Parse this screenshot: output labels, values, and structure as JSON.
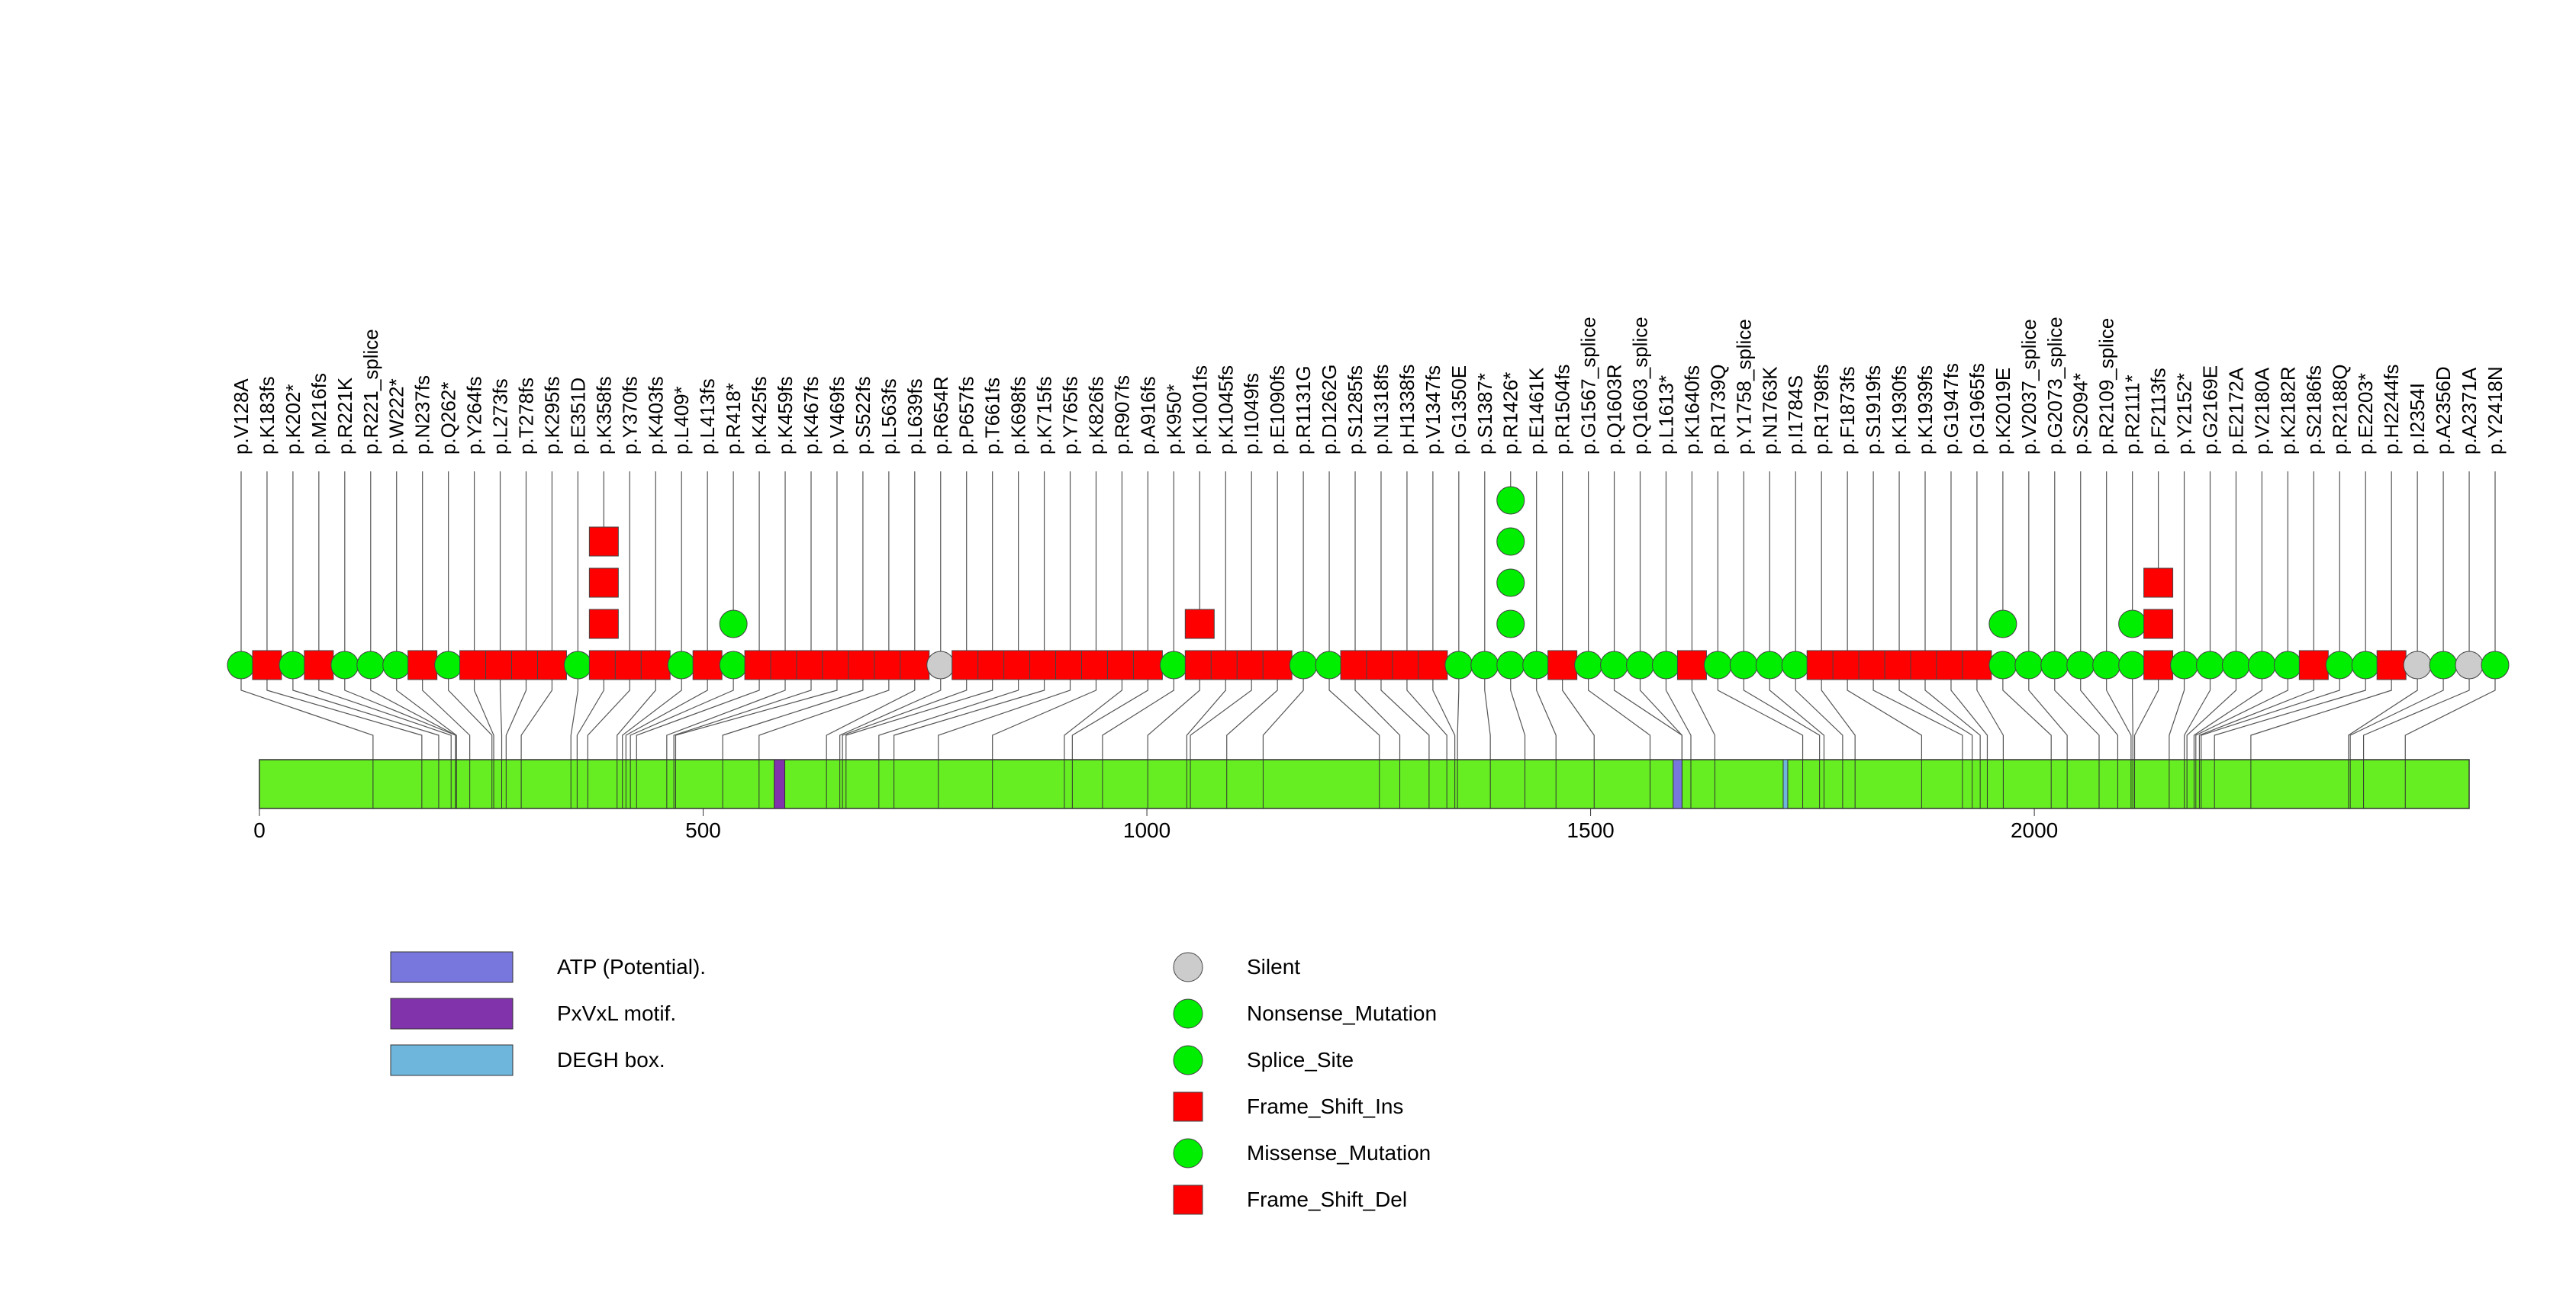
{
  "chart_data": {
    "type": "lollipop",
    "protein_length": 2490,
    "x_ticks": [
      0,
      500,
      1000,
      1500,
      2000
    ],
    "tick_labels": [
      "0",
      "500",
      "1000",
      "1500",
      "2000"
    ],
    "colors": {
      "protein": "#66ee22",
      "Silent": "#cccccc",
      "Nonsense_Mutation": "#00ee00",
      "Splice_Site": "#00ee00",
      "Frame_Shift_Ins": "#ff0000",
      "Missense_Mutation": "#00ee00",
      "Frame_Shift_Del": "#ff0000",
      "ATP": "#7777dd",
      "PxVxL": "#8033aa",
      "DEGH": "#6fb6dd"
    },
    "domains": [
      {
        "name": "PxVxL motif",
        "start": 580,
        "end": 592,
        "color": "#8033aa"
      },
      {
        "name": "ATP (Potential)",
        "start": 1593,
        "end": 1603,
        "color": "#7777dd"
      },
      {
        "name": "DEGH box",
        "start": 1717,
        "end": 1720,
        "color": "#6fb6dd"
      }
    ],
    "mutations": [
      {
        "label": "p.V128A",
        "pos": 128,
        "type": "Missense_Mutation",
        "count": 1
      },
      {
        "label": "p.K183fs",
        "pos": 183,
        "type": "Frame_Shift_Del",
        "count": 1
      },
      {
        "label": "p.K202*",
        "pos": 202,
        "type": "Nonsense_Mutation",
        "count": 1
      },
      {
        "label": "p.M216fs",
        "pos": 216,
        "type": "Frame_Shift_Del",
        "count": 1
      },
      {
        "label": "p.R221K",
        "pos": 221,
        "type": "Missense_Mutation",
        "count": 1
      },
      {
        "label": "p.R221_splice",
        "pos": 221,
        "type": "Splice_Site",
        "count": 1
      },
      {
        "label": "p.W222*",
        "pos": 222,
        "type": "Nonsense_Mutation",
        "count": 1
      },
      {
        "label": "p.N237fs",
        "pos": 237,
        "type": "Frame_Shift_Del",
        "count": 1
      },
      {
        "label": "p.Q262*",
        "pos": 262,
        "type": "Nonsense_Mutation",
        "count": 1
      },
      {
        "label": "p.Y264fs",
        "pos": 264,
        "type": "Frame_Shift_Del",
        "count": 1
      },
      {
        "label": "p.L273fs",
        "pos": 273,
        "type": "Frame_Shift_Del",
        "count": 1
      },
      {
        "label": "p.T278fs",
        "pos": 278,
        "type": "Frame_Shift_Del",
        "count": 1
      },
      {
        "label": "p.K295fs",
        "pos": 295,
        "type": "Frame_Shift_Del",
        "count": 1
      },
      {
        "label": "p.E351D",
        "pos": 351,
        "type": "Missense_Mutation",
        "count": 1
      },
      {
        "label": "p.K358fs",
        "pos": 358,
        "type": "Frame_Shift_Ins",
        "count": 4
      },
      {
        "label": "p.Y370fs",
        "pos": 370,
        "type": "Frame_Shift_Del",
        "count": 1
      },
      {
        "label": "p.K403fs",
        "pos": 403,
        "type": "Frame_Shift_Del",
        "count": 1
      },
      {
        "label": "p.L409*",
        "pos": 409,
        "type": "Nonsense_Mutation",
        "count": 1
      },
      {
        "label": "p.L413fs",
        "pos": 413,
        "type": "Frame_Shift_Del",
        "count": 1
      },
      {
        "label": "p.R418*",
        "pos": 418,
        "type": "Nonsense_Mutation",
        "count": 2
      },
      {
        "label": "p.K425fs",
        "pos": 425,
        "type": "Frame_Shift_Del",
        "count": 1
      },
      {
        "label": "p.K459fs",
        "pos": 459,
        "type": "Frame_Shift_Del",
        "count": 1
      },
      {
        "label": "p.K467fs",
        "pos": 467,
        "type": "Frame_Shift_Del",
        "count": 1
      },
      {
        "label": "p.V469fs",
        "pos": 469,
        "type": "Frame_Shift_Del",
        "count": 1
      },
      {
        "label": "p.S522fs",
        "pos": 522,
        "type": "Frame_Shift_Del",
        "count": 1
      },
      {
        "label": "p.L563fs",
        "pos": 563,
        "type": "Frame_Shift_Del",
        "count": 1
      },
      {
        "label": "p.L639fs",
        "pos": 639,
        "type": "Frame_Shift_Del",
        "count": 1
      },
      {
        "label": "p.R654R",
        "pos": 654,
        "type": "Silent",
        "count": 1
      },
      {
        "label": "p.P657fs",
        "pos": 657,
        "type": "Frame_Shift_Del",
        "count": 1
      },
      {
        "label": "p.T661fs",
        "pos": 661,
        "type": "Frame_Shift_Del",
        "count": 1
      },
      {
        "label": "p.K698fs",
        "pos": 698,
        "type": "Frame_Shift_Del",
        "count": 1
      },
      {
        "label": "p.K715fs",
        "pos": 715,
        "type": "Frame_Shift_Del",
        "count": 1
      },
      {
        "label": "p.Y765fs",
        "pos": 765,
        "type": "Frame_Shift_Del",
        "count": 1
      },
      {
        "label": "p.K826fs",
        "pos": 826,
        "type": "Frame_Shift_Del",
        "count": 1
      },
      {
        "label": "p.R907fs",
        "pos": 907,
        "type": "Frame_Shift_Del",
        "count": 1
      },
      {
        "label": "p.A916fs",
        "pos": 916,
        "type": "Frame_Shift_Del",
        "count": 1
      },
      {
        "label": "p.K950*",
        "pos": 950,
        "type": "Nonsense_Mutation",
        "count": 1
      },
      {
        "label": "p.K1001fs",
        "pos": 1001,
        "type": "Frame_Shift_Ins",
        "count": 2
      },
      {
        "label": "p.K1045fs",
        "pos": 1045,
        "type": "Frame_Shift_Del",
        "count": 1
      },
      {
        "label": "p.I1049fs",
        "pos": 1049,
        "type": "Frame_Shift_Del",
        "count": 1
      },
      {
        "label": "p.E1090fs",
        "pos": 1090,
        "type": "Frame_Shift_Del",
        "count": 1
      },
      {
        "label": "p.R1131G",
        "pos": 1131,
        "type": "Missense_Mutation",
        "count": 1
      },
      {
        "label": "p.D1262G",
        "pos": 1262,
        "type": "Missense_Mutation",
        "count": 1
      },
      {
        "label": "p.S1285fs",
        "pos": 1285,
        "type": "Frame_Shift_Del",
        "count": 1
      },
      {
        "label": "p.N1318fs",
        "pos": 1318,
        "type": "Frame_Shift_Del",
        "count": 1
      },
      {
        "label": "p.H1338fs",
        "pos": 1338,
        "type": "Frame_Shift_Del",
        "count": 1
      },
      {
        "label": "p.V1347fs",
        "pos": 1347,
        "type": "Frame_Shift_Del",
        "count": 1
      },
      {
        "label": "p.G1350E",
        "pos": 1350,
        "type": "Missense_Mutation",
        "count": 1
      },
      {
        "label": "p.S1387*",
        "pos": 1387,
        "type": "Nonsense_Mutation",
        "count": 1
      },
      {
        "label": "p.R1426*",
        "pos": 1426,
        "type": "Nonsense_Mutation",
        "count": 5
      },
      {
        "label": "p.E1461K",
        "pos": 1461,
        "type": "Missense_Mutation",
        "count": 1
      },
      {
        "label": "p.R1504fs",
        "pos": 1504,
        "type": "Frame_Shift_Del",
        "count": 1
      },
      {
        "label": "p.G1567_splice",
        "pos": 1567,
        "type": "Splice_Site",
        "count": 1
      },
      {
        "label": "p.Q1603R",
        "pos": 1603,
        "type": "Missense_Mutation",
        "count": 1
      },
      {
        "label": "p.Q1603_splice",
        "pos": 1603,
        "type": "Splice_Site",
        "count": 1
      },
      {
        "label": "p.L1613*",
        "pos": 1613,
        "type": "Nonsense_Mutation",
        "count": 1
      },
      {
        "label": "p.K1640fs",
        "pos": 1640,
        "type": "Frame_Shift_Del",
        "count": 1
      },
      {
        "label": "p.R1739Q",
        "pos": 1739,
        "type": "Missense_Mutation",
        "count": 1
      },
      {
        "label": "p.Y1758_splice",
        "pos": 1758,
        "type": "Splice_Site",
        "count": 1
      },
      {
        "label": "p.N1763K",
        "pos": 1763,
        "type": "Missense_Mutation",
        "count": 1
      },
      {
        "label": "p.I1784S",
        "pos": 1784,
        "type": "Missense_Mutation",
        "count": 1
      },
      {
        "label": "p.R1798fs",
        "pos": 1798,
        "type": "Frame_Shift_Del",
        "count": 1
      },
      {
        "label": "p.F1873fs",
        "pos": 1873,
        "type": "Frame_Shift_Del",
        "count": 1
      },
      {
        "label": "p.S1919fs",
        "pos": 1919,
        "type": "Frame_Shift_Del",
        "count": 1
      },
      {
        "label": "p.K1930fs",
        "pos": 1930,
        "type": "Frame_Shift_Del",
        "count": 1
      },
      {
        "label": "p.K1939fs",
        "pos": 1939,
        "type": "Frame_Shift_Del",
        "count": 1
      },
      {
        "label": "p.G1947fs",
        "pos": 1947,
        "type": "Frame_Shift_Del",
        "count": 1
      },
      {
        "label": "p.G1965fs",
        "pos": 1965,
        "type": "Frame_Shift_Del",
        "count": 1
      },
      {
        "label": "p.K2019E",
        "pos": 2019,
        "type": "Missense_Mutation",
        "count": 2
      },
      {
        "label": "p.V2037_splice",
        "pos": 2037,
        "type": "Splice_Site",
        "count": 1
      },
      {
        "label": "p.G2073_splice",
        "pos": 2073,
        "type": "Splice_Site",
        "count": 1
      },
      {
        "label": "p.S2094*",
        "pos": 2094,
        "type": "Nonsense_Mutation",
        "count": 1
      },
      {
        "label": "p.R2109_splice",
        "pos": 2109,
        "type": "Splice_Site",
        "count": 1
      },
      {
        "label": "p.R2111*",
        "pos": 2111,
        "type": "Nonsense_Mutation",
        "count": 2
      },
      {
        "label": "p.F2113fs",
        "pos": 2113,
        "type": "Frame_Shift_Ins",
        "count": 3
      },
      {
        "label": "p.Y2152*",
        "pos": 2152,
        "type": "Nonsense_Mutation",
        "count": 1
      },
      {
        "label": "p.G2169E",
        "pos": 2169,
        "type": "Missense_Mutation",
        "count": 1
      },
      {
        "label": "p.E2172A",
        "pos": 2172,
        "type": "Missense_Mutation",
        "count": 1
      },
      {
        "label": "p.V2180A",
        "pos": 2180,
        "type": "Missense_Mutation",
        "count": 1
      },
      {
        "label": "p.K2182R",
        "pos": 2182,
        "type": "Missense_Mutation",
        "count": 1
      },
      {
        "label": "p.S2186fs",
        "pos": 2186,
        "type": "Frame_Shift_Del",
        "count": 1
      },
      {
        "label": "p.R2188Q",
        "pos": 2188,
        "type": "Missense_Mutation",
        "count": 1
      },
      {
        "label": "p.E2203*",
        "pos": 2203,
        "type": "Nonsense_Mutation",
        "count": 1
      },
      {
        "label": "p.H2244fs",
        "pos": 2244,
        "type": "Frame_Shift_Del",
        "count": 1
      },
      {
        "label": "p.I2354I",
        "pos": 2354,
        "type": "Silent",
        "count": 1
      },
      {
        "label": "p.A2356D",
        "pos": 2356,
        "type": "Missense_Mutation",
        "count": 1
      },
      {
        "label": "p.A2371A",
        "pos": 2371,
        "type": "Silent",
        "count": 1
      },
      {
        "label": "p.Y2418N",
        "pos": 2418,
        "type": "Missense_Mutation",
        "count": 1
      }
    ],
    "legend_left": [
      {
        "label": "ATP (Potential).",
        "color": "#7777dd"
      },
      {
        "label": "PxVxL motif.",
        "color": "#8033aa"
      },
      {
        "label": "DEGH box.",
        "color": "#6fb6dd"
      }
    ],
    "legend_right": [
      {
        "label": "Silent",
        "shape": "circle",
        "color": "#cccccc"
      },
      {
        "label": "Nonsense_Mutation",
        "shape": "circle",
        "color": "#00ee00"
      },
      {
        "label": "Splice_Site",
        "shape": "circle",
        "color": "#00ee00"
      },
      {
        "label": "Frame_Shift_Ins",
        "shape": "square",
        "color": "#ff0000"
      },
      {
        "label": "Missense_Mutation",
        "shape": "circle",
        "color": "#00ee00"
      },
      {
        "label": "Frame_Shift_Del",
        "shape": "square",
        "color": "#ff0000"
      }
    ]
  }
}
